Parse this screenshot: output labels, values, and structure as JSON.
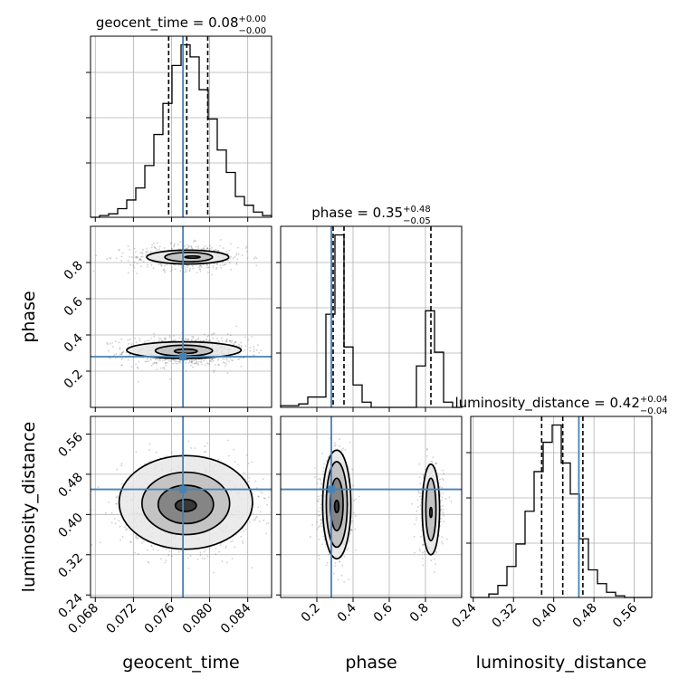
{
  "chart_data": {
    "type": "corner",
    "colors": {
      "truth": "#4682b4",
      "line": "#000000",
      "grid": "#b0b0b0",
      "points": "#555555"
    },
    "grid": true,
    "parameters": [
      {
        "name": "geocent_time",
        "axis_label": "geocent_time",
        "title": {
          "main": "geocent_time = 0.08",
          "plus": "+0.00",
          "minus": "−0.00"
        },
        "range": [
          0.0675,
          0.0865
        ],
        "ticks": [
          0.068,
          0.072,
          0.076,
          0.08,
          0.084
        ],
        "tick_labels": [
          "0.068",
          "0.072",
          "0.076",
          "0.080",
          "0.084"
        ],
        "truth": 0.0772,
        "quantiles": [
          0.0757,
          0.0776,
          0.0798
        ],
        "hist_edges_start": 0.0675,
        "hist_bin_width": 0.00095,
        "hist_counts": [
          0,
          1,
          2,
          5,
          10,
          17,
          30,
          48,
          66,
          88,
          100,
          93,
          74,
          57,
          39,
          26,
          12,
          7,
          3,
          1
        ]
      },
      {
        "name": "phase",
        "axis_label": "phase",
        "title": {
          "main": "phase = 0.35",
          "plus": "+0.48",
          "minus": "−0.05"
        },
        "range": [
          0.0,
          1.0
        ],
        "ticks": [
          0.2,
          0.4,
          0.6,
          0.8
        ],
        "tick_labels": [
          "0.2",
          "0.4",
          "0.6",
          "0.8"
        ],
        "truth": 0.28,
        "quantiles": [
          0.29,
          0.35,
          0.83
        ],
        "hist_edges_start": 0.0,
        "hist_bin_width": 0.05,
        "hist_counts": [
          1,
          1,
          2,
          6,
          6,
          54,
          100,
          35,
          13,
          3,
          0,
          0,
          0,
          0,
          0,
          24,
          56,
          32,
          3,
          0
        ]
      },
      {
        "name": "luminosity_distance",
        "axis_label": "luminosity_distance",
        "title": {
          "main": "luminosity_distance = 0.42",
          "plus": "+0.04",
          "minus": "−0.04"
        },
        "range": [
          0.235,
          0.595
        ],
        "ticks": [
          0.24,
          0.32,
          0.4,
          0.48,
          0.56
        ],
        "tick_labels": [
          "0.24",
          "0.32",
          "0.40",
          "0.48",
          "0.56"
        ],
        "truth": 0.45,
        "quantiles": [
          0.376,
          0.418,
          0.458
        ],
        "hist_edges_start": 0.235,
        "hist_bin_width": 0.018,
        "hist_counts": [
          0,
          0,
          2,
          7,
          18,
          31,
          50,
          73,
          90,
          100,
          78,
          60,
          34,
          16,
          8,
          3,
          1,
          0,
          0,
          0
        ]
      }
    ],
    "pairs": [
      {
        "x": "geocent_time",
        "y": "phase",
        "modes": [
          {
            "cx": 0.0775,
            "cy": 0.31,
            "sx": 0.0028,
            "sy": 0.035,
            "weight": 0.66,
            "contours": [
              {
                "rx": 0.0012,
                "ry": 0.012,
                "ox": 0.0,
                "oy": 0.0
              },
              {
                "rx": 0.003,
                "ry": 0.03,
                "ox": -0.0002,
                "oy": 0.003
              },
              {
                "rx": 0.006,
                "ry": 0.046,
                "ox": -0.0002,
                "oy": 0.006
              }
            ]
          },
          {
            "cx": 0.0778,
            "cy": 0.83,
            "sx": 0.0027,
            "sy": 0.032,
            "weight": 0.34,
            "contours": [
              {
                "rx": 0.0008,
                "ry": 0.006,
                "ox": 0.0004,
                "oy": 0.0
              },
              {
                "rx": 0.0025,
                "ry": 0.026,
                "ox": 0.0,
                "oy": 0.0
              },
              {
                "rx": 0.0043,
                "ry": 0.038,
                "ox": -0.0001,
                "oy": 0.0
              }
            ]
          }
        ]
      },
      {
        "x": "geocent_time",
        "y": "luminosity_distance",
        "modes": [
          {
            "cx": 0.0775,
            "cy": 0.42,
            "sx": 0.0029,
            "sy": 0.038,
            "weight": 1.0,
            "contours": [
              {
                "rx": 0.0011,
                "ry": 0.012,
                "ox": 0.0,
                "oy": -0.002
              },
              {
                "rx": 0.0029,
                "ry": 0.038,
                "ox": 0.0,
                "oy": 0.0
              },
              {
                "rx": 0.0046,
                "ry": 0.062,
                "ox": 0.0,
                "oy": 0.002
              },
              {
                "rx": 0.007,
                "ry": 0.093,
                "ox": 0.0,
                "oy": 0.004
              }
            ]
          }
        ]
      },
      {
        "x": "phase",
        "y": "luminosity_distance",
        "modes": [
          {
            "cx": 0.31,
            "cy": 0.42,
            "sx": 0.035,
            "sy": 0.038,
            "weight": 0.66,
            "contours": [
              {
                "rx": 0.012,
                "ry": 0.012,
                "ox": 0.0,
                "oy": -0.004
              },
              {
                "rx": 0.035,
                "ry": 0.052,
                "ox": 0.0,
                "oy": 0.0
              },
              {
                "rx": 0.058,
                "ry": 0.085,
                "ox": 0.0,
                "oy": 0.0
              },
              {
                "rx": 0.078,
                "ry": 0.108,
                "ox": 0.0,
                "oy": 0.0
              }
            ]
          },
          {
            "cx": 0.83,
            "cy": 0.41,
            "sx": 0.03,
            "sy": 0.038,
            "weight": 0.34,
            "contours": [
              {
                "rx": 0.006,
                "ry": 0.01,
                "ox": 0.0,
                "oy": -0.006
              },
              {
                "rx": 0.028,
                "ry": 0.062,
                "ox": 0.0,
                "oy": 0.0
              },
              {
                "rx": 0.048,
                "ry": 0.09,
                "ox": 0.0,
                "oy": 0.0
              }
            ]
          }
        ]
      }
    ]
  }
}
